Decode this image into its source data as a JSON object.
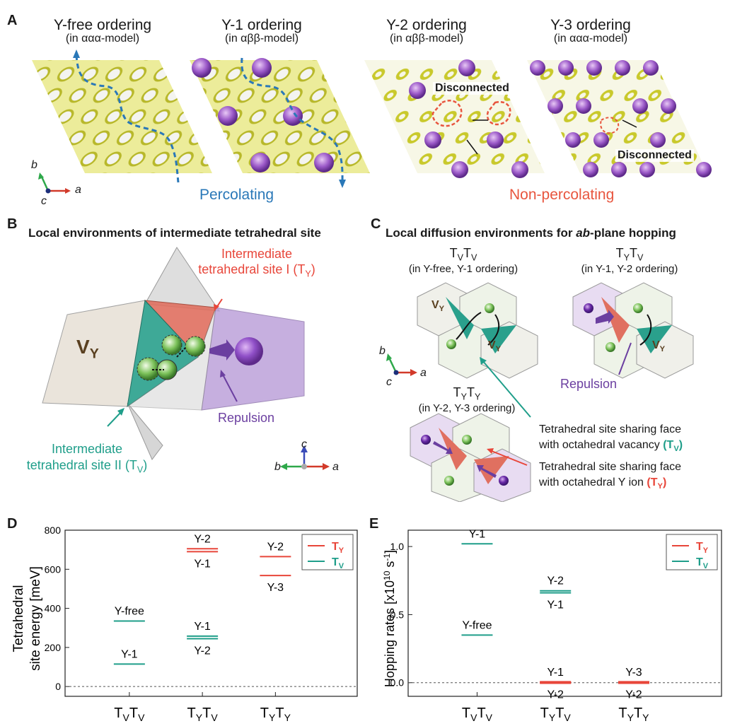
{
  "panel_a": {
    "letter": "A",
    "orderings": [
      {
        "title": "Y-free ordering",
        "model": "(in ααα-model)"
      },
      {
        "title": "Y-1 ordering",
        "model": "(in αββ-model)"
      },
      {
        "title": "Y-2 ordering",
        "model": "(in αββ-model)"
      },
      {
        "title": "Y-3 ordering",
        "model": "(in ααα-model)"
      }
    ],
    "percolating": "Percolating",
    "non_percolating": "Non-percolating",
    "disconnected_1": "Disconnected",
    "disconnected_2": "Disconnected",
    "axes": {
      "b": "b",
      "a": "a",
      "c": "c"
    }
  },
  "panel_b": {
    "letter": "B",
    "title": "Local environments of intermediate tetrahedral site",
    "site_i_line1": "Intermediate",
    "site_i_line2": "tetrahedral site I (T",
    "site_i_sub": "Y",
    "site_i_close": ")",
    "site_ii_line1": "Intermediate",
    "site_ii_line2": "tetrahedral site II (T",
    "site_ii_sub": "V",
    "site_ii_close": ")",
    "vy_main": "V",
    "vy_sub": "Y",
    "repulsion": "Repulsion",
    "axes": {
      "c": "c",
      "b": "b",
      "a": "a"
    }
  },
  "panel_c": {
    "letter": "C",
    "title_pre": "Local diffusion environments for ",
    "title_em": "ab",
    "title_post": "-plane hopping",
    "env1_label": "TVTV",
    "env1_note": "(in Y-free, Y-1 ordering)",
    "env2_label": "TYTV",
    "env2_note": "(in Y-1, Y-2 ordering)",
    "env3_label": "TYTY",
    "env3_note": "(in Y-2, Y-3 ordering)",
    "repulsion": "Repulsion",
    "tv_desc_line1": "Tetrahedral site sharing face",
    "tv_desc_line2": "with octahedral vacancy",
    "tv_desc_sym": "(TV)",
    "ty_desc_line1": "Tetrahedral site sharing face",
    "ty_desc_line2": "with octahedral Y ion",
    "ty_desc_sym": "(TY)",
    "vy": "VY",
    "axes": {
      "b": "b",
      "a": "a",
      "c": "c"
    }
  },
  "colors": {
    "ty_red": "#e8463a",
    "tv_teal": "#1f9e8a",
    "percolating_blue": "#2a78b8",
    "nonperc_red": "#e8553e",
    "repulsion_purple": "#6b3fa0",
    "yttrium_purple": "#9b59c8",
    "sulfur_yellow": "#d6d630"
  },
  "chart_data": [
    {
      "panel": "D",
      "type": "scatter",
      "ylabel_line1": "Tetrahedral",
      "ylabel_line2": "site energy [meV]",
      "ylim": [
        -50,
        800
      ],
      "yticks": [
        0,
        200,
        400,
        600,
        800
      ],
      "categories": [
        "TVTV",
        "TYTV",
        "TYTY"
      ],
      "legend": [
        {
          "name": "TY",
          "color": "#e8463a"
        },
        {
          "name": "TV",
          "color": "#1f9e8a"
        }
      ],
      "legend_position": "top-right",
      "reference_line_y": 0,
      "levels": [
        {
          "cat": 0,
          "y": 335,
          "series": "TV",
          "label": "Y-free",
          "label_side": "above"
        },
        {
          "cat": 0,
          "y": 115,
          "series": "TV",
          "label": "Y-1",
          "label_side": "above"
        },
        {
          "cat": 1,
          "y": 705,
          "series": "TY",
          "label": "Y-2",
          "label_side": "above"
        },
        {
          "cat": 1,
          "y": 690,
          "series": "TY",
          "label": "Y-1",
          "label_side": "below"
        },
        {
          "cat": 1,
          "y": 258,
          "series": "TV",
          "label": "Y-1",
          "label_side": "above"
        },
        {
          "cat": 1,
          "y": 245,
          "series": "TV",
          "label": "Y-2",
          "label_side": "below"
        },
        {
          "cat": 2,
          "y": 665,
          "series": "TY",
          "label": "Y-2",
          "label_side": "above"
        },
        {
          "cat": 2,
          "y": 568,
          "series": "TY",
          "label": "Y-3",
          "label_side": "below"
        }
      ]
    },
    {
      "panel": "E",
      "type": "scatter",
      "ylabel": "Hopping rates [x10",
      "ylabel_exp": "10",
      "ylabel_unit": " s",
      "ylabel_exp2": "-1",
      "ylabel_close": "]",
      "ylim": [
        -0.1,
        1.12
      ],
      "yticks": [
        0.0,
        0.5,
        1.0
      ],
      "ytick_labels": [
        "0.0",
        "0.5",
        "1.0"
      ],
      "categories": [
        "TVTV",
        "TYTV",
        "TYTY"
      ],
      "legend": [
        {
          "name": "TY",
          "color": "#e8463a"
        },
        {
          "name": "TV",
          "color": "#1f9e8a"
        }
      ],
      "legend_position": "top-right",
      "reference_line_y": 0,
      "levels": [
        {
          "cat": 0,
          "y": 1.02,
          "series": "TV",
          "label": "Y-1",
          "label_side": "above"
        },
        {
          "cat": 0,
          "y": 0.35,
          "series": "TV",
          "label": "Y-free",
          "label_side": "above"
        },
        {
          "cat": 1,
          "y": 0.675,
          "series": "TV",
          "label": "Y-2",
          "label_side": "above"
        },
        {
          "cat": 1,
          "y": 0.66,
          "series": "TV",
          "label": "Y-1",
          "label_side": "below"
        },
        {
          "cat": 1,
          "y": 0.003,
          "series": "TY",
          "label": "Y-1",
          "label_side": "above",
          "thick": true
        },
        {
          "cat": 1,
          "y": 0.0,
          "series": "TY",
          "label": "Y-2",
          "label_side": "below",
          "thick": true
        },
        {
          "cat": 2,
          "y": 0.003,
          "series": "TY",
          "label": "Y-3",
          "label_side": "above",
          "thick": true
        },
        {
          "cat": 2,
          "y": 0.0,
          "series": "TY",
          "label": "Y-2",
          "label_side": "below",
          "thick": true
        }
      ]
    }
  ],
  "panel_d_letter": "D",
  "panel_e_letter": "E"
}
